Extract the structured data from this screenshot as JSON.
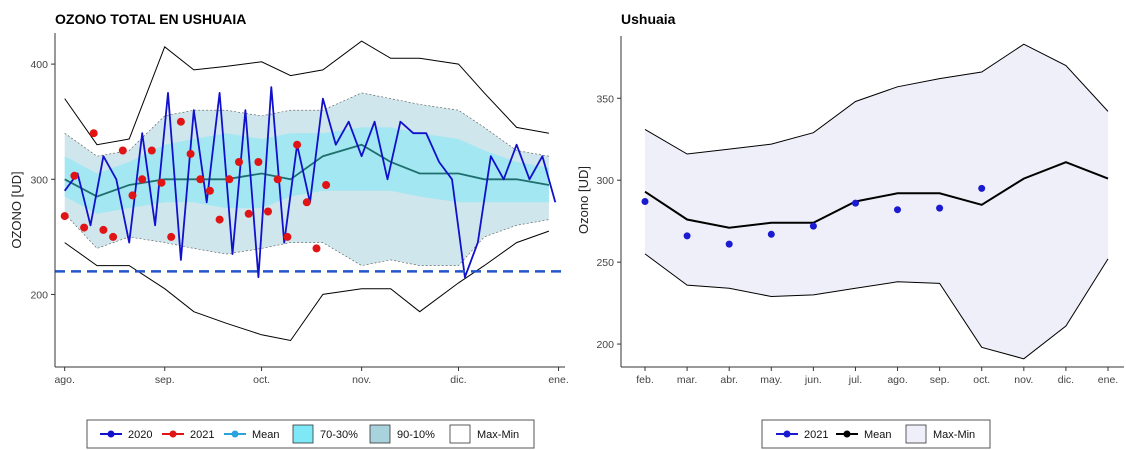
{
  "colors": {
    "s2020": "#1111cc",
    "s2021": "#e01414",
    "mean_left": "#1f6f6f",
    "mean_left_legend": "#29a3de",
    "band7030": "#7ee8f7",
    "band9010": "#a8d2dc",
    "maxmin": "#000000",
    "threshold": "#2255cc",
    "maxmin_right": "#efeffa",
    "s2021_right": "#1a1ad0",
    "mean_right": "#000000"
  },
  "chart_data": [
    {
      "type": "line",
      "title": "OZONO TOTAL EN USHUAIA",
      "ylabel": "OZONO [UD]",
      "xlabel": "",
      "x_ticks": [
        "ago.",
        "sep.",
        "oct.",
        "nov.",
        "dic.",
        "ene."
      ],
      "x_range_days": [
        -3,
        155
      ],
      "ylim": [
        137,
        427
      ],
      "y_ticks": [
        200,
        300,
        400
      ],
      "threshold": 220,
      "grid": false,
      "legend": "bottom",
      "legend_items": [
        "2020",
        "2021",
        "Mean",
        "70-30%",
        "90-10%",
        "Max-Min"
      ],
      "band_x": [
        0,
        10,
        20,
        31,
        40,
        50,
        61,
        70,
        80,
        92,
        101,
        110,
        122,
        130,
        140,
        150
      ],
      "max": [
        370,
        330,
        335,
        415,
        395,
        398,
        402,
        390,
        395,
        420,
        405,
        405,
        400,
        375,
        345,
        340
      ],
      "p90": [
        340,
        320,
        325,
        355,
        360,
        360,
        355,
        360,
        360,
        375,
        370,
        365,
        360,
        345,
        325,
        320
      ],
      "p70": [
        320,
        305,
        315,
        330,
        335,
        340,
        335,
        340,
        340,
        345,
        345,
        340,
        335,
        325,
        315,
        310
      ],
      "mean": [
        300,
        285,
        295,
        300,
        300,
        300,
        305,
        300,
        320,
        330,
        315,
        305,
        305,
        300,
        300,
        295
      ],
      "p30": [
        285,
        270,
        275,
        280,
        280,
        275,
        275,
        285,
        290,
        290,
        290,
        285,
        280,
        280,
        280,
        280
      ],
      "p10": [
        270,
        240,
        250,
        245,
        240,
        235,
        240,
        245,
        245,
        225,
        230,
        225,
        225,
        250,
        260,
        265
      ],
      "min": [
        245,
        225,
        225,
        205,
        185,
        175,
        165,
        160,
        200,
        205,
        205,
        185,
        210,
        225,
        245,
        255
      ],
      "series": [
        {
          "name": "2020",
          "x": [
            0,
            4,
            8,
            12,
            16,
            20,
            24,
            28,
            32,
            36,
            40,
            44,
            48,
            52,
            56,
            60,
            64,
            68,
            72,
            76,
            80,
            84,
            88,
            92,
            96,
            100,
            104,
            108,
            112,
            116,
            120,
            124,
            128,
            132,
            136,
            140,
            144,
            148,
            152
          ],
          "values": [
            290,
            305,
            260,
            320,
            300,
            245,
            340,
            260,
            375,
            230,
            360,
            280,
            375,
            235,
            360,
            215,
            380,
            245,
            330,
            280,
            370,
            330,
            350,
            320,
            350,
            300,
            350,
            340,
            340,
            315,
            300,
            215,
            245,
            320,
            300,
            330,
            300,
            320,
            280
          ]
        },
        {
          "name": "2021",
          "x": [
            0,
            3,
            6,
            9,
            12,
            15,
            18,
            21,
            24,
            27,
            30,
            33,
            36,
            39,
            42,
            45,
            48,
            51,
            54,
            57,
            60,
            63,
            66,
            69,
            72,
            75,
            78,
            81
          ],
          "values": [
            268,
            303,
            258,
            340,
            256,
            250,
            325,
            286,
            300,
            325,
            297,
            250,
            350,
            322,
            300,
            290,
            265,
            300,
            315,
            270,
            315,
            272,
            300,
            250,
            330,
            280,
            240,
            295
          ]
        }
      ]
    },
    {
      "type": "line",
      "title": "Ushuaia",
      "ylabel": "Ozono [UD]",
      "xlabel": "",
      "categories": [
        "feb.",
        "mar.",
        "abr.",
        "may.",
        "jun.",
        "jul.",
        "ago.",
        "sep.",
        "oct.",
        "nov.",
        "dic.",
        "ene."
      ],
      "ylim": [
        186,
        388
      ],
      "y_ticks": [
        200,
        250,
        300,
        350
      ],
      "grid": false,
      "legend": "bottom",
      "legend_items": [
        "2021",
        "Mean",
        "Max-Min"
      ],
      "max": [
        331,
        316,
        319,
        322,
        329,
        348,
        357,
        362,
        366,
        383,
        370,
        342
      ],
      "min": [
        255,
        236,
        234,
        229,
        230,
        234,
        238,
        237,
        198,
        191,
        211,
        252
      ],
      "series": [
        {
          "name": "Mean",
          "values": [
            293,
            276,
            271,
            274,
            274,
            287,
            292,
            292,
            285,
            301,
            311,
            301
          ]
        },
        {
          "name": "2021",
          "values": [
            287,
            266,
            261,
            267,
            272,
            286,
            282,
            283,
            295,
            null,
            null,
            null
          ]
        }
      ]
    }
  ]
}
